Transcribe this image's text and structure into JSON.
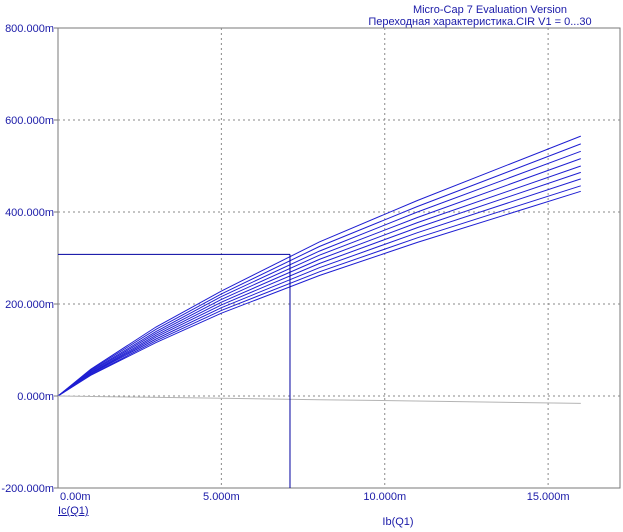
{
  "header": {
    "line1": "Micro-Cap 7 Evaluation Version",
    "line2": "Переходная характеристика.CIR V1 = 0...30"
  },
  "chart_data": {
    "type": "line",
    "xlabel": "Ib(Q1)",
    "ylabel": "Ic(Q1)",
    "xlim": [
      -0.0,
      0.017
    ],
    "ylim": [
      -0.2,
      0.8
    ],
    "x_ticks": [
      "0.00m",
      "5.000m",
      "10.000m",
      "15.000m"
    ],
    "y_ticks": [
      "800.000m",
      "600.000m",
      "400.000m",
      "200.000m",
      "0.000m",
      "-200.000m"
    ],
    "grid": true,
    "series": [
      {
        "color": "#1e1ed2",
        "points": [
          [
            0,
            0
          ],
          [
            0.001,
            0.058
          ],
          [
            0.003,
            0.15
          ],
          [
            0.005,
            0.228
          ],
          [
            0.008,
            0.335
          ],
          [
            0.011,
            0.425
          ],
          [
            0.016,
            0.565
          ]
        ]
      },
      {
        "color": "#1e1ed2",
        "points": [
          [
            0,
            0
          ],
          [
            0.001,
            0.056
          ],
          [
            0.003,
            0.145
          ],
          [
            0.005,
            0.222
          ],
          [
            0.008,
            0.325
          ],
          [
            0.011,
            0.412
          ],
          [
            0.016,
            0.548
          ]
        ]
      },
      {
        "color": "#1e1ed2",
        "points": [
          [
            0,
            0
          ],
          [
            0.001,
            0.054
          ],
          [
            0.003,
            0.14
          ],
          [
            0.005,
            0.216
          ],
          [
            0.008,
            0.315
          ],
          [
            0.011,
            0.4
          ],
          [
            0.016,
            0.532
          ]
        ]
      },
      {
        "color": "#1e1ed2",
        "points": [
          [
            0,
            0
          ],
          [
            0.001,
            0.052
          ],
          [
            0.003,
            0.136
          ],
          [
            0.005,
            0.21
          ],
          [
            0.008,
            0.306
          ],
          [
            0.011,
            0.388
          ],
          [
            0.016,
            0.516
          ]
        ]
      },
      {
        "color": "#1e1ed2",
        "points": [
          [
            0,
            0
          ],
          [
            0.001,
            0.05
          ],
          [
            0.003,
            0.132
          ],
          [
            0.005,
            0.204
          ],
          [
            0.008,
            0.297
          ],
          [
            0.011,
            0.377
          ],
          [
            0.016,
            0.5
          ]
        ]
      },
      {
        "color": "#1e1ed2",
        "points": [
          [
            0,
            0
          ],
          [
            0.001,
            0.049
          ],
          [
            0.003,
            0.128
          ],
          [
            0.005,
            0.198
          ],
          [
            0.008,
            0.288
          ],
          [
            0.011,
            0.366
          ],
          [
            0.016,
            0.486
          ]
        ]
      },
      {
        "color": "#1e1ed2",
        "points": [
          [
            0,
            0
          ],
          [
            0.001,
            0.048
          ],
          [
            0.003,
            0.124
          ],
          [
            0.005,
            0.192
          ],
          [
            0.008,
            0.279
          ],
          [
            0.011,
            0.355
          ],
          [
            0.016,
            0.472
          ]
        ]
      },
      {
        "color": "#1e1ed2",
        "points": [
          [
            0,
            0
          ],
          [
            0.001,
            0.046
          ],
          [
            0.003,
            0.12
          ],
          [
            0.005,
            0.186
          ],
          [
            0.008,
            0.27
          ],
          [
            0.011,
            0.344
          ],
          [
            0.016,
            0.457
          ]
        ]
      },
      {
        "color": "#1e1ed2",
        "points": [
          [
            0,
            0
          ],
          [
            0.001,
            0.045
          ],
          [
            0.003,
            0.116
          ],
          [
            0.005,
            0.18
          ],
          [
            0.008,
            0.262
          ],
          [
            0.011,
            0.334
          ],
          [
            0.016,
            0.445
          ]
        ]
      },
      {
        "color": "#b4b4b4",
        "points": [
          [
            0,
            0
          ],
          [
            0.004,
            -0.004
          ],
          [
            0.008,
            -0.008
          ],
          [
            0.012,
            -0.012
          ],
          [
            0.016,
            -0.016
          ]
        ]
      }
    ],
    "cursor": {
      "x": 0.0071,
      "y": 0.308,
      "color": "#0000a0"
    }
  }
}
